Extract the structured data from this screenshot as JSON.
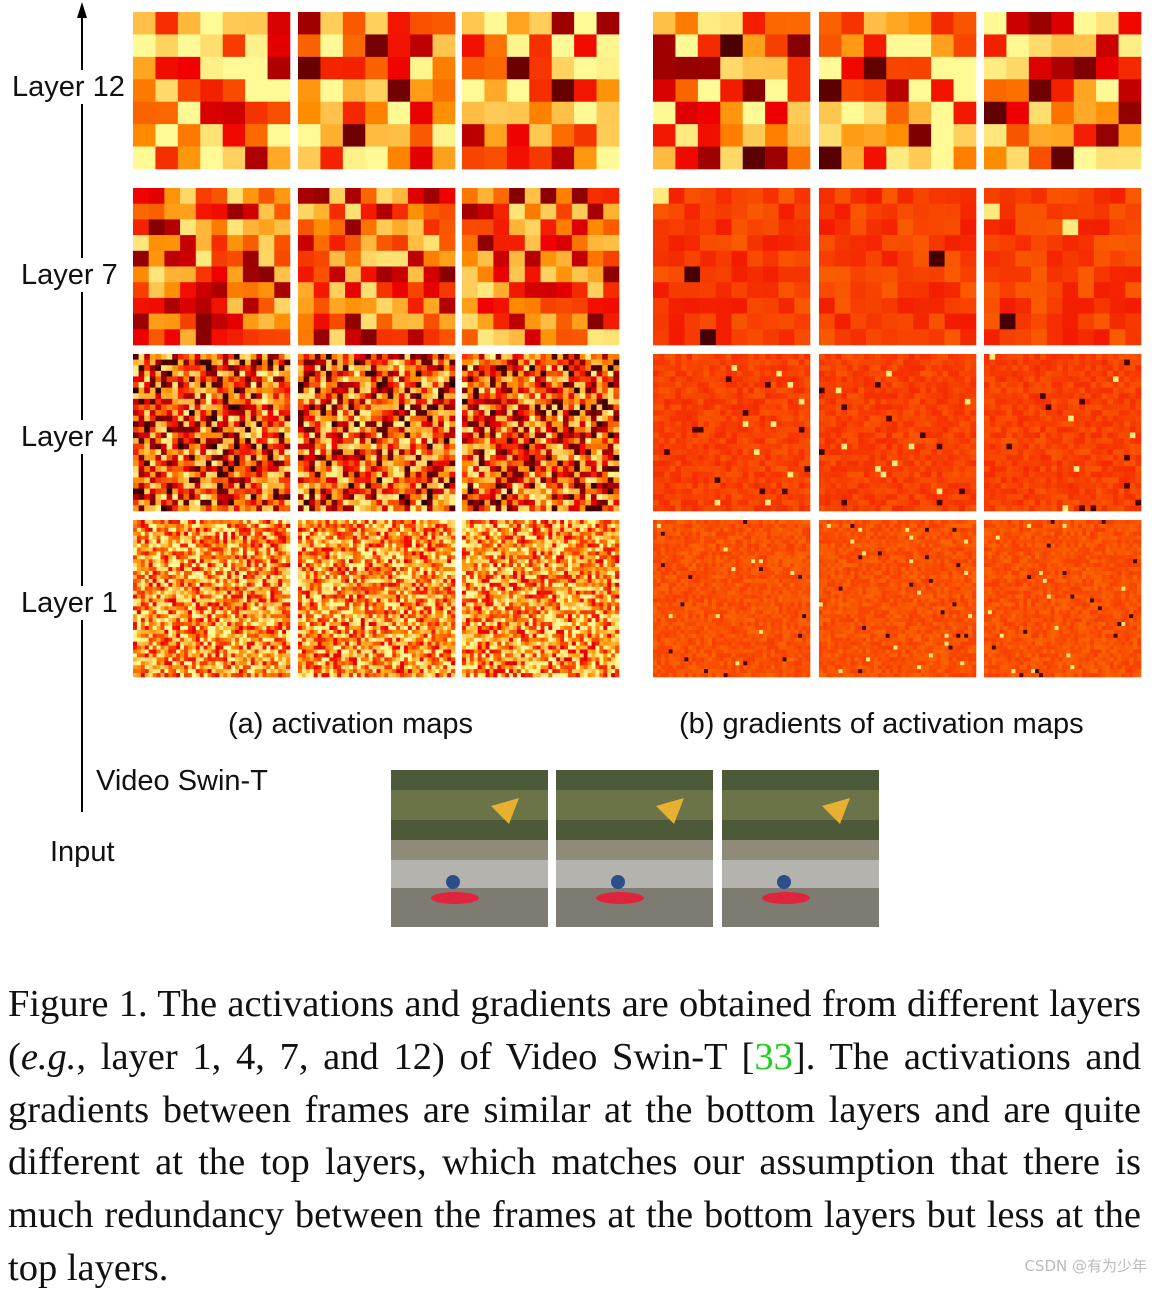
{
  "layer_labels": [
    "Layer 12",
    "Layer 7",
    "Layer 4",
    "Layer 1"
  ],
  "axis_labels": {
    "model": "Video Swin-T",
    "input": "Input"
  },
  "panel_captions": {
    "a": "(a) activation maps",
    "b": "(b) gradients of activation maps"
  },
  "caption": {
    "text_before": "Figure 1. The activations and gradients are obtained from different layers (",
    "eg": "e.g.",
    "text_middle": ", layer 1, 4, 7, and 12) of Video Swin-T [",
    "citation": "33",
    "text_after": "].  The activations and gradients between frames are similar at the bottom layers and are quite different at the top layers, which matches our assumption that there is much redundancy between the frames at the bottom layers but less at the top layers."
  },
  "watermark": "CSDN @有为少年",
  "colors": {
    "heat_hot": "#fff59a",
    "heat_mid": "#ff8c00",
    "heat_cold": "#000000",
    "citation": "#22cc22"
  }
}
